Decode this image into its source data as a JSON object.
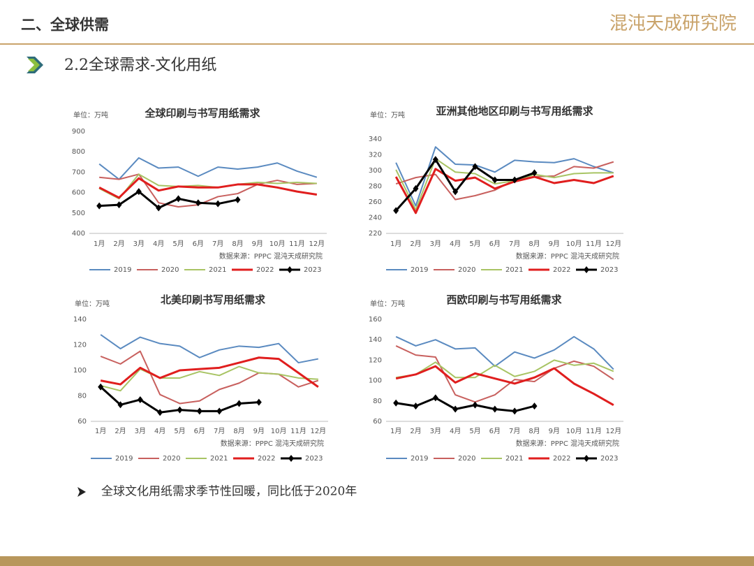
{
  "header": {
    "section": "二、全球供需",
    "logo": "混沌天成研究院",
    "subtitle": "2.2全球需求-文化用纸"
  },
  "bullet": "全球文化用纸需求季节性回暖，同比低于2020年",
  "chart_data": [
    {
      "type": "line",
      "title": "全球印刷与书写用纸需求",
      "unit": "单位：万吨",
      "source": "数据来源：PPPC 混沌天成研究院",
      "categories": [
        "1月",
        "2月",
        "3月",
        "4月",
        "5月",
        "6月",
        "7月",
        "8月",
        "9月",
        "10月",
        "11月",
        "12月"
      ],
      "ylim": [
        400,
        900
      ],
      "yticks": [
        400,
        500,
        600,
        700,
        800,
        900
      ],
      "grid": false,
      "legend": "bottom",
      "series": [
        {
          "name": "2019",
          "color": "#5a8ac0",
          "values": [
            740,
            665,
            770,
            720,
            725,
            680,
            725,
            715,
            725,
            745,
            705,
            675
          ]
        },
        {
          "name": "2020",
          "color": "#c8605e",
          "values": [
            675,
            665,
            690,
            550,
            530,
            540,
            580,
            595,
            640,
            660,
            640,
            645
          ]
        },
        {
          "name": "2021",
          "color": "#a8c464",
          "values": [
            620,
            570,
            690,
            635,
            630,
            635,
            625,
            640,
            650,
            645,
            650,
            645
          ]
        },
        {
          "name": "2022",
          "color": "#e01e1e",
          "values": [
            625,
            575,
            670,
            610,
            630,
            625,
            625,
            640,
            640,
            625,
            605,
            590
          ]
        },
        {
          "name": "2023",
          "color": "#000000",
          "marker": "diamond",
          "values": [
            535,
            540,
            605,
            525,
            570,
            550,
            545,
            565,
            null,
            null,
            null,
            null
          ]
        }
      ]
    },
    {
      "type": "line",
      "title": "亚洲其他地区印刷与书写用纸需求",
      "unit": "单位：万吨",
      "source": "数据来源：PPPC 混沌天成研究院",
      "categories": [
        "1月",
        "2月",
        "3月",
        "4月",
        "5月",
        "6月",
        "7月",
        "8月",
        "9月",
        "10月",
        "11月",
        "12月"
      ],
      "ylim": [
        220,
        340
      ],
      "yticks": [
        220,
        240,
        260,
        280,
        300,
        320,
        340
      ],
      "grid": false,
      "legend": "bottom",
      "series": [
        {
          "name": "2019",
          "color": "#5a8ac0",
          "values": [
            310,
            255,
            330,
            308,
            307,
            298,
            313,
            311,
            310,
            315,
            305,
            297
          ]
        },
        {
          "name": "2020",
          "color": "#c8605e",
          "values": [
            283,
            291,
            295,
            263,
            268,
            275,
            288,
            292,
            293,
            305,
            303,
            311
          ]
        },
        {
          "name": "2021",
          "color": "#a8c464",
          "values": [
            301,
            250,
            315,
            298,
            296,
            283,
            287,
            295,
            291,
            296,
            297,
            297
          ]
        },
        {
          "name": "2022",
          "color": "#e01e1e",
          "values": [
            292,
            246,
            302,
            287,
            291,
            277,
            286,
            292,
            284,
            288,
            284,
            293
          ]
        },
        {
          "name": "2023",
          "color": "#000000",
          "marker": "diamond",
          "values": [
            249,
            277,
            314,
            273,
            305,
            288,
            288,
            297,
            null,
            null,
            null,
            null
          ]
        }
      ]
    },
    {
      "type": "line",
      "title": "北美印刷书写用纸需求",
      "unit": "单位：万吨",
      "source": "数据来源：PPPC 混沌天成研究院",
      "categories": [
        "1月",
        "2月",
        "3月",
        "4月",
        "5月",
        "6月",
        "7月",
        "8月",
        "9月",
        "10月",
        "11月",
        "12月"
      ],
      "ylim": [
        60,
        140
      ],
      "yticks": [
        60,
        80,
        100,
        120,
        140
      ],
      "grid": false,
      "legend": "bottom",
      "series": [
        {
          "name": "2019",
          "color": "#5a8ac0",
          "values": [
            128,
            117,
            126,
            121,
            119,
            110,
            116,
            119,
            118,
            121,
            106,
            109
          ]
        },
        {
          "name": "2020",
          "color": "#c8605e",
          "values": [
            111,
            105,
            115,
            81,
            74,
            76,
            85,
            90,
            98,
            97,
            87,
            92
          ]
        },
        {
          "name": "2021",
          "color": "#a8c464",
          "values": [
            88,
            84,
            101,
            94,
            94,
            99,
            96,
            103,
            98,
            97,
            94,
            93
          ]
        },
        {
          "name": "2022",
          "color": "#e01e1e",
          "values": [
            92,
            89,
            102,
            94,
            100,
            101,
            102,
            106,
            110,
            109,
            98,
            87
          ]
        },
        {
          "name": "2023",
          "color": "#000000",
          "marker": "diamond",
          "values": [
            87,
            73,
            77,
            67,
            69,
            68,
            68,
            74,
            75,
            null,
            null,
            null
          ]
        }
      ]
    },
    {
      "type": "line",
      "title": "西欧印刷与书写用纸需求",
      "unit": "单位：万吨",
      "source": "数据来源：PPPC 混沌天成研究院",
      "categories": [
        "1月",
        "2月",
        "3月",
        "4月",
        "5月",
        "6月",
        "7月",
        "8月",
        "9月",
        "10月",
        "11月",
        "12月"
      ],
      "ylim": [
        60,
        160
      ],
      "yticks": [
        60,
        80,
        100,
        120,
        140,
        160
      ],
      "grid": false,
      "legend": "bottom",
      "series": [
        {
          "name": "2019",
          "color": "#5a8ac0",
          "values": [
            143,
            134,
            140,
            131,
            132,
            114,
            128,
            122,
            130,
            143,
            131,
            111
          ]
        },
        {
          "name": "2020",
          "color": "#c8605e",
          "values": [
            134,
            125,
            123,
            86,
            79,
            86,
            101,
            99,
            112,
            119,
            114,
            101
          ]
        },
        {
          "name": "2021",
          "color": "#a8c464",
          "values": [
            103,
            106,
            118,
            103,
            103,
            115,
            104,
            109,
            120,
            115,
            117,
            109
          ]
        },
        {
          "name": "2022",
          "color": "#e01e1e",
          "values": [
            102,
            106,
            114,
            98,
            107,
            102,
            97,
            103,
            112,
            97,
            87,
            76
          ]
        },
        {
          "name": "2023",
          "color": "#000000",
          "marker": "diamond",
          "values": [
            78,
            75,
            83,
            72,
            76,
            72,
            70,
            75,
            null,
            null,
            null,
            null
          ]
        }
      ]
    }
  ]
}
